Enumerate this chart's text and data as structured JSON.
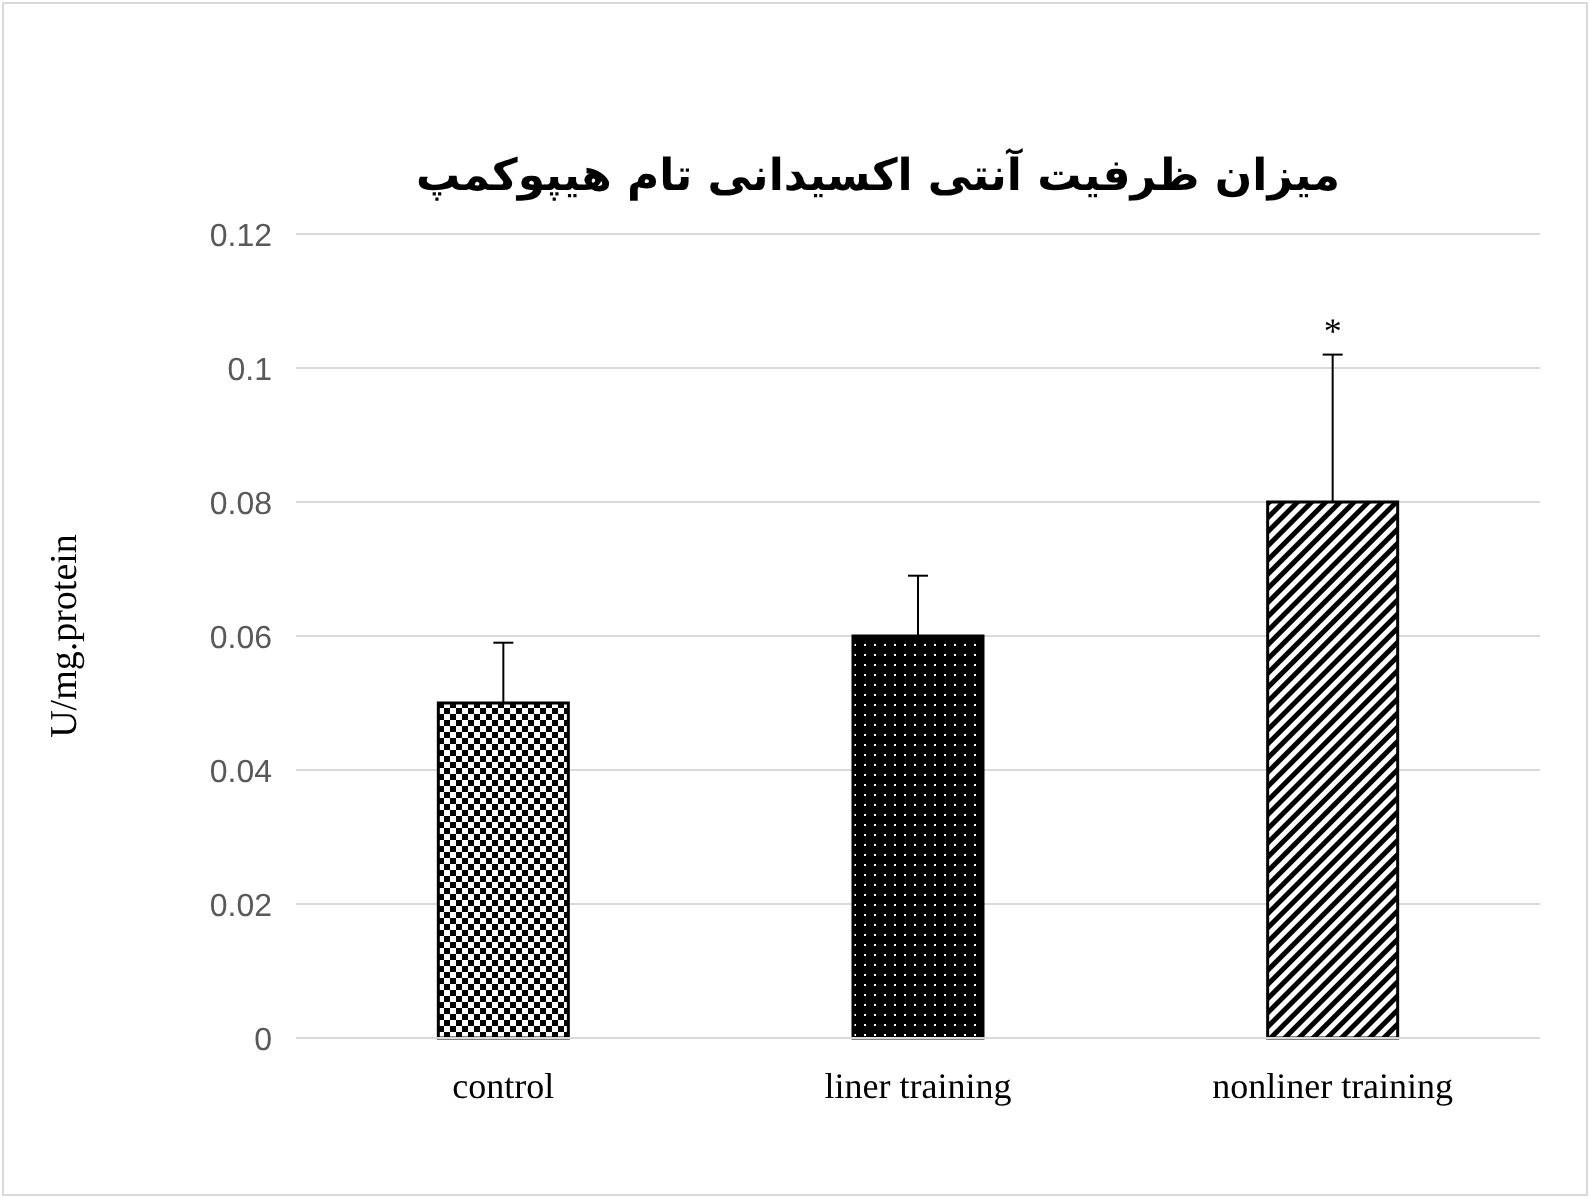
{
  "chart_data": {
    "type": "bar",
    "title": "میزان ظرفیت آنتی اکسیدانی تام هیپوکمپ",
    "ylabel": "U/mg.protein",
    "categories": [
      "control",
      "liner training",
      "nonliner training"
    ],
    "values": [
      0.05,
      0.06,
      0.08
    ],
    "errors": [
      [
        0.05,
        0.059
      ],
      [
        0.06,
        0.069
      ],
      [
        0.08,
        0.102
      ]
    ],
    "color": "#000000",
    "ylim": [
      0,
      0.12
    ],
    "yticks": [
      0,
      0.02,
      0.04,
      0.06,
      0.08,
      {
        "value": 0.1,
        "label": "0.1"
      },
      0.12
    ],
    "grid": "y",
    "annotations": [
      {
        "text": "*",
        "x": "nonliner training",
        "y": 0.102
      }
    ]
  }
}
